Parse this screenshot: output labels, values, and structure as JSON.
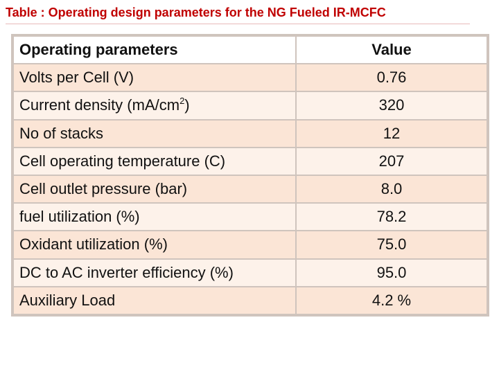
{
  "title": "Table : Operating design parameters for the NG Fueled IR-MCFC",
  "table": {
    "headers": {
      "parameter": "Operating parameters",
      "value": "Value"
    },
    "rows": [
      {
        "parameter": "Volts per Cell (V)",
        "value": "0.76"
      },
      {
        "parameter_prefix": "Current density (mA/cm",
        "parameter_superscript": "2",
        "parameter_suffix": ")",
        "value": "320"
      },
      {
        "parameter": "No of stacks",
        "value": "12"
      },
      {
        "parameter": "Cell operating temperature (C)",
        "value": "207"
      },
      {
        "parameter": "Cell outlet pressure (bar)",
        "value": "8.0"
      },
      {
        "parameter": "fuel utilization (%)",
        "value": "78.2"
      },
      {
        "parameter": "Oxidant utilization (%)",
        "value": "75.0"
      },
      {
        "parameter": "DC to AC inverter efficiency (%)",
        "value": "95.0"
      },
      {
        "parameter": "Auxiliary Load",
        "value": "4.2 %"
      }
    ]
  }
}
